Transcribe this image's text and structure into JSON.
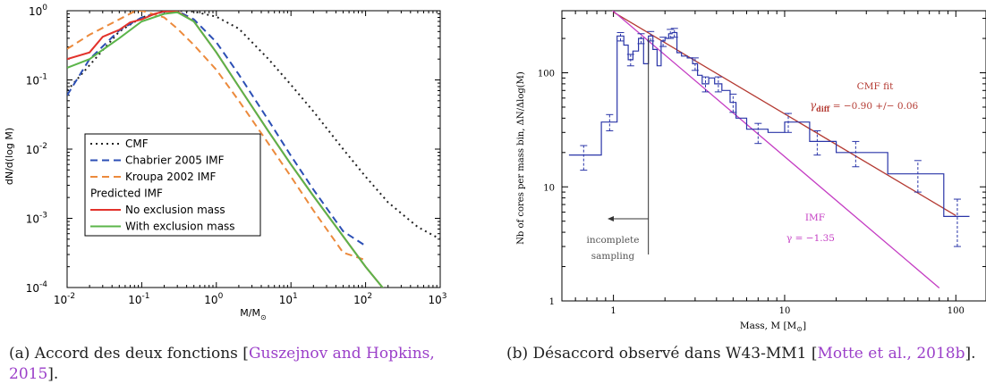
{
  "chart_data": [
    {
      "type": "line",
      "scale": {
        "x": "log",
        "y": "log"
      },
      "xlim": [
        0.01,
        1000
      ],
      "ylim": [
        0.0001,
        1
      ],
      "xlabel": "M/M",
      "xlabel_sub": "⊙",
      "ylabel": "dN/d(log M)",
      "x_ticks": [
        {
          "base": "10",
          "exp": "-2",
          "v": 0.01
        },
        {
          "base": "10",
          "exp": "-1",
          "v": 0.1
        },
        {
          "base": "10",
          "exp": "0",
          "v": 1
        },
        {
          "base": "10",
          "exp": "1",
          "v": 10
        },
        {
          "base": "10",
          "exp": "2",
          "v": 100
        },
        {
          "base": "10",
          "exp": "3",
          "v": 1000
        }
      ],
      "y_ticks": [
        {
          "base": "10",
          "exp": "-4",
          "v": 0.0001
        },
        {
          "base": "10",
          "exp": "-3",
          "v": 0.001
        },
        {
          "base": "10",
          "exp": "-2",
          "v": 0.01
        },
        {
          "base": "10",
          "exp": "-1",
          "v": 0.1
        },
        {
          "base": "10",
          "exp": "0",
          "v": 1
        }
      ],
      "legend": {
        "placement": "lower-left",
        "subheading": "Predicted IMF",
        "subheading_before": 3
      },
      "series": [
        {
          "name": "CMF",
          "color": "#222222",
          "dash": "dot",
          "x": [
            0.01,
            0.05,
            0.1,
            0.2,
            0.3,
            0.5,
            1,
            2,
            5,
            10,
            20,
            50,
            100,
            200,
            500,
            1000
          ],
          "y": [
            0.07,
            0.5,
            0.8,
            0.97,
            1.0,
            0.97,
            0.82,
            0.55,
            0.2,
            0.085,
            0.035,
            0.01,
            0.004,
            0.0017,
            0.00075,
            0.0005
          ]
        },
        {
          "name": "Chabrier 2005 IMF",
          "color": "#2c4fb5",
          "dash": "dash",
          "x": [
            0.01,
            0.02,
            0.05,
            0.1,
            0.2,
            0.3,
            0.5,
            1,
            2,
            5,
            10,
            20,
            50,
            100
          ],
          "y": [
            0.06,
            0.2,
            0.52,
            0.8,
            0.97,
            0.99,
            0.75,
            0.35,
            0.12,
            0.026,
            0.008,
            0.0026,
            0.00065,
            0.0004
          ]
        },
        {
          "name": "Kroupa 2002 IMF",
          "color": "#ec8a3c",
          "dash": "dash",
          "x": [
            0.01,
            0.02,
            0.05,
            0.08,
            0.1,
            0.2,
            0.3,
            0.5,
            1,
            2,
            5,
            10,
            20,
            50,
            100
          ],
          "y": [
            0.28,
            0.45,
            0.75,
            0.98,
            1.0,
            0.8,
            0.55,
            0.32,
            0.14,
            0.05,
            0.012,
            0.004,
            0.0013,
            0.00032,
            0.00025
          ]
        },
        {
          "name": "No exclusion mass",
          "color": "#e2322b",
          "dash": "solid",
          "x": [
            0.01,
            0.02,
            0.03,
            0.05,
            0.07,
            0.1,
            0.15,
            0.2,
            0.3,
            0.5,
            1,
            2,
            5,
            10,
            20,
            50,
            100,
            200,
            500
          ],
          "y": [
            0.2,
            0.25,
            0.42,
            0.53,
            0.68,
            0.75,
            0.9,
            0.98,
            0.97,
            0.7,
            0.25,
            0.08,
            0.018,
            0.006,
            0.0021,
            0.00055,
            0.0002,
            8e-05,
            7e-05
          ]
        },
        {
          "name": "With exclusion mass",
          "color": "#5bb54a",
          "dash": "solid",
          "x": [
            0.01,
            0.02,
            0.05,
            0.1,
            0.2,
            0.3,
            0.5,
            1,
            2,
            5,
            10,
            20,
            50,
            100,
            200,
            500
          ],
          "y": [
            0.15,
            0.2,
            0.4,
            0.7,
            0.9,
            0.95,
            0.7,
            0.25,
            0.08,
            0.018,
            0.006,
            0.0021,
            0.00055,
            0.0002,
            8e-05,
            7e-05
          ]
        }
      ]
    },
    {
      "type": "line",
      "scale": {
        "x": "log",
        "y": "log"
      },
      "xlim": [
        0.5,
        150
      ],
      "ylim": [
        1,
        350
      ],
      "xlabel": "Mass, M [M",
      "xlabel_sub": "⊙",
      "xlabel_close": "]",
      "ylabel": "Nb of cores per mass bin, ΔN/Δlog(M)",
      "x_ticks": [
        {
          "label": "1",
          "v": 1
        },
        {
          "label": "10",
          "v": 10
        },
        {
          "label": "100",
          "v": 100
        }
      ],
      "y_ticks": [
        {
          "label": "1",
          "v": 1
        },
        {
          "label": "10",
          "v": 10
        },
        {
          "label": "100",
          "v": 100
        }
      ],
      "histogram": {
        "color": "#2a35a8",
        "edges": [
          0.55,
          0.85,
          1.05,
          1.15,
          1.22,
          1.3,
          1.4,
          1.5,
          1.6,
          1.7,
          1.8,
          1.9,
          2.0,
          2.1,
          2.2,
          2.35,
          2.5,
          2.7,
          2.9,
          3.1,
          3.3,
          3.6,
          3.9,
          4.3,
          4.8,
          5.2,
          6.0,
          8.0,
          10.0,
          14.0,
          20.0,
          40.0,
          85.0,
          120.0
        ],
        "values": [
          19,
          37,
          210,
          175,
          130,
          155,
          200,
          120,
          210,
          160,
          115,
          190,
          200,
          220,
          225,
          150,
          140,
          135,
          120,
          95,
          80,
          90,
          80,
          70,
          55,
          40,
          32,
          30,
          37,
          25,
          20,
          13,
          5.5
        ],
        "error_bars": [
          {
            "x": 0.67,
            "y": 19,
            "lo": 14,
            "hi": 23
          },
          {
            "x": 0.95,
            "y": 37,
            "lo": 31,
            "hi": 43
          },
          {
            "x": 1.1,
            "y": 210,
            "lo": 190,
            "hi": 225
          },
          {
            "x": 1.26,
            "y": 130,
            "lo": 115,
            "hi": 145
          },
          {
            "x": 1.45,
            "y": 200,
            "lo": 180,
            "hi": 220
          },
          {
            "x": 1.65,
            "y": 210,
            "lo": 190,
            "hi": 230
          },
          {
            "x": 1.95,
            "y": 190,
            "lo": 170,
            "hi": 205
          },
          {
            "x": 2.15,
            "y": 220,
            "lo": 200,
            "hi": 240
          },
          {
            "x": 2.27,
            "y": 225,
            "lo": 205,
            "hi": 245
          },
          {
            "x": 3.0,
            "y": 120,
            "lo": 105,
            "hi": 135
          },
          {
            "x": 3.45,
            "y": 80,
            "lo": 68,
            "hi": 92
          },
          {
            "x": 4.1,
            "y": 80,
            "lo": 68,
            "hi": 92
          },
          {
            "x": 5.0,
            "y": 55,
            "lo": 45,
            "hi": 65
          },
          {
            "x": 7.0,
            "y": 30,
            "lo": 24,
            "hi": 36
          },
          {
            "x": 10.5,
            "y": 37,
            "lo": 30,
            "hi": 44
          },
          {
            "x": 15.5,
            "y": 25,
            "lo": 19,
            "hi": 31
          },
          {
            "x": 26.0,
            "y": 20,
            "lo": 15,
            "hi": 25
          },
          {
            "x": 60.0,
            "y": 13,
            "lo": 9,
            "hi": 17
          },
          {
            "x": 102.0,
            "y": 5.5,
            "lo": 3,
            "hi": 7.8
          }
        ]
      },
      "fits": [
        {
          "name": "CMF fit",
          "label_main": "γ",
          "label_sub": "diff",
          "label_rest": " = −0.90 +/− 0.06",
          "color": "#b43a32",
          "x": [
            1.0,
            100.0
          ],
          "y": [
            340,
            5.6
          ]
        },
        {
          "name": "IMF",
          "label_main": "γ = −1.35",
          "label_sub": "",
          "label_rest": "",
          "color": "#c43cc3",
          "x": [
            0.75,
            80.0
          ],
          "y": [
            500,
            1.3
          ]
        }
      ],
      "annotations": {
        "incomplete_line1": "incomplete",
        "incomplete_line2": "sampling",
        "threshold_x": 1.6
      }
    }
  ],
  "captions": {
    "left_label": "(a) Accord des deux fonctions [",
    "left_cite": "Guszejnov and Hopkins, 2015",
    "left_end": "].",
    "right_label": "(b) Désaccord observé dans W43-MM1 [",
    "right_cite": "Motte et al., 2018b",
    "right_end": "]."
  }
}
